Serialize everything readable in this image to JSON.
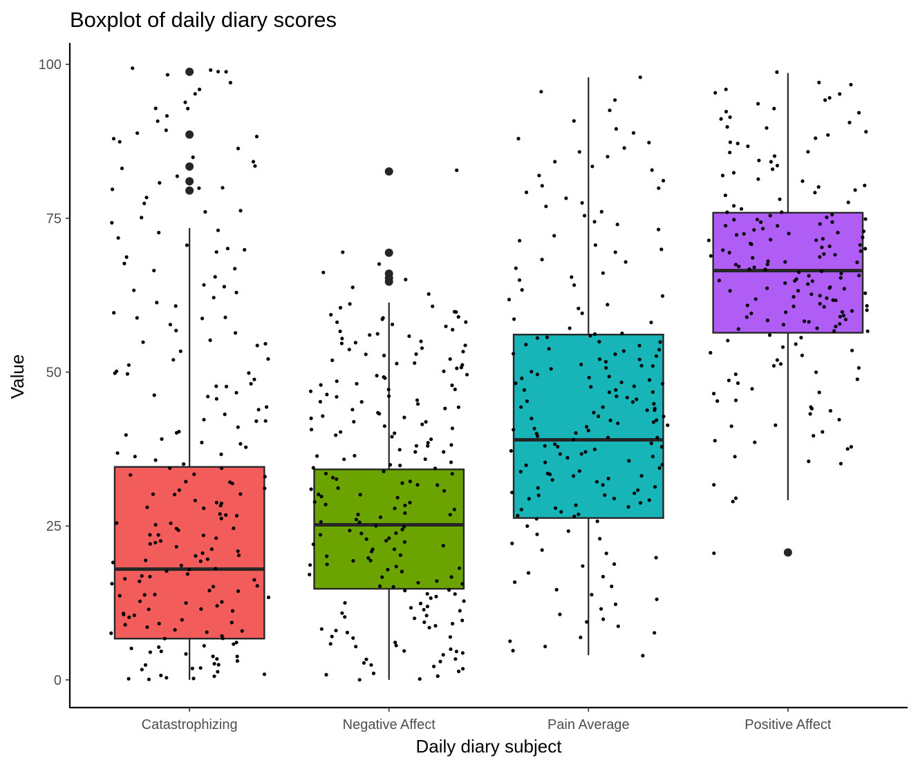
{
  "chart_data": {
    "type": "boxplot",
    "title": "Boxplot of daily diary scores",
    "xlabel": "Daily diary subject",
    "ylabel": "Value",
    "ylim": [
      -4.5,
      103.5
    ],
    "yticks": [
      0,
      25,
      50,
      75,
      100
    ],
    "ytick_labels": [
      "0",
      "25",
      "50",
      "75",
      "100"
    ],
    "grid": false,
    "legend": "none",
    "categories": [
      "Catastrophizing",
      "Negative Affect",
      "Pain Average",
      "Positive Affect"
    ],
    "colors": [
      "#F25D5B",
      "#6BA300",
      "#17B4B8",
      "#B05DF5"
    ],
    "point_color": "#000000",
    "boxes": [
      {
        "category": "Catastrophizing",
        "min": 0,
        "q1": 6.7,
        "median": 18.0,
        "q3": 34.6,
        "max": 73.4,
        "outliers": [
          79.5,
          81.0,
          83.4,
          88.6,
          98.8
        ]
      },
      {
        "category": "Negative Affect",
        "min": 0,
        "q1": 14.8,
        "median": 25.2,
        "q3": 34.2,
        "max": 61.3,
        "outliers": [
          64.7,
          65.3,
          66.0,
          69.4,
          82.6
        ]
      },
      {
        "category": "Pain Average",
        "min": 4.0,
        "q1": 26.3,
        "median": 39.0,
        "q3": 56.1,
        "max": 97.9,
        "outliers": []
      },
      {
        "category": "Positive Affect",
        "min": 29.2,
        "q1": 56.4,
        "median": 66.5,
        "q3": 75.9,
        "max": 98.6,
        "outliers": [
          20.7
        ]
      }
    ],
    "jitter_points": [
      [
        0.5,
        99.3,
        98.9,
        89.0,
        80.1,
        70.0,
        62.8,
        58.6,
        55.0,
        50.0,
        49.7,
        47.6,
        46.2,
        42.2,
        40.1,
        38.2,
        36.2,
        34.4,
        33.0,
        32.0,
        31.0,
        30.1,
        29.3,
        28.5,
        27.7,
        26.9,
        26.1,
        25.4,
        24.8,
        24.1,
        23.4,
        22.8,
        22.2,
        21.5,
        20.9,
        20.3,
        19.7,
        19.1,
        18.6,
        18.0,
        17.4,
        16.9,
        16.3,
        15.7,
        15.1,
        14.5,
        14.0,
        13.4,
        12.8,
        12.2,
        11.6,
        11.0,
        10.5,
        9.9,
        9.3,
        8.7,
        8.1,
        7.5,
        6.9,
        6.3,
        5.7,
        5.1,
        4.5,
        3.9,
        3.4,
        2.8,
        2.3,
        1.8,
        1.3,
        0.8,
        0.3,
        0.0,
        0.2,
        1.0,
        2.0,
        3.0,
        4.2,
        5.3,
        6.5,
        7.7,
        8.8,
        10.0,
        11.3,
        12.6,
        13.8,
        15.2,
        16.6,
        17.9,
        19.3,
        20.8,
        22.2,
        23.7,
        25.2,
        26.8,
        28.4,
        30.0,
        31.7,
        33.3,
        35.0,
        36.7,
        38.5,
        40.3,
        42.2,
        44.1,
        46.0,
        48.0,
        50.1,
        52.2,
        54.4,
        56.7,
        59.0,
        61.5,
        64.1,
        66.8,
        69.7,
        72.8,
        76.1,
        79.7,
        83.6,
        88.0,
        93.0,
        99.0,
        0.4,
        1.5,
        2.6,
        3.7,
        4.8,
        5.9,
        7.0,
        8.1,
        9.2,
        10.3,
        11.4,
        12.5,
        13.6,
        14.7,
        15.8,
        16.9,
        18.0,
        19.1,
        20.2,
        21.3,
        22.4,
        23.5,
        24.6,
        25.7,
        26.8,
        27.9,
        29.0,
        30.1,
        31.2,
        32.3,
        33.4,
        34.5,
        35.6,
        36.7,
        37.8,
        38.9,
        40.0,
        41.1,
        42.2,
        43.3,
        44.4,
        45.5,
        46.6,
        47.7,
        48.8,
        49.9,
        51.0,
        52.1,
        53.2,
        54.3,
        55.4,
        56.5,
        57.6,
        58.7,
        59.8,
        60.9,
        62.0,
        63.1,
        64.2,
        65.3,
        66.4,
        67.5,
        68.6,
        69.7,
        70.8,
        71.9,
        73.0,
        74.1,
        75.2,
        76.3,
        77.4,
        78.5,
        79.6,
        80.7,
        81.8,
        82.9,
        84.0,
        85.1,
        86.2,
        87.3,
        88.4,
        89.5,
        90.6,
        91.7,
        92.8,
        93.9,
        95.0,
        96.1,
        97.2,
        98.3,
        99.4
      ],
      [
        0.0,
        0.6,
        1.2,
        1.8,
        2.4,
        3.0,
        3.6,
        4.2,
        4.8,
        5.4,
        6.0,
        6.6,
        7.2,
        7.8,
        8.4,
        9.0,
        9.6,
        10.2,
        10.8,
        11.4,
        12.0,
        12.6,
        13.2,
        13.8,
        14.4,
        15.0,
        15.6,
        16.2,
        16.8,
        17.4,
        18.0,
        18.6,
        19.2,
        19.8,
        20.4,
        21.0,
        21.6,
        22.2,
        22.8,
        23.4,
        24.0,
        24.6,
        25.2,
        25.8,
        26.4,
        27.0,
        27.6,
        28.2,
        28.8,
        29.4,
        30.0,
        30.6,
        31.2,
        31.8,
        32.4,
        33.0,
        33.6,
        34.2,
        34.8,
        35.4,
        36.0,
        36.6,
        37.2,
        37.8,
        38.4,
        39.0,
        39.6,
        40.2,
        40.8,
        41.4,
        42.0,
        42.6,
        43.2,
        43.8,
        44.4,
        45.0,
        45.6,
        46.2,
        46.8,
        47.4,
        48.0,
        48.6,
        49.2,
        49.8,
        50.4,
        51.0,
        51.6,
        52.2,
        52.8,
        53.4,
        54.0,
        54.6,
        55.2,
        55.8,
        56.4,
        57.0,
        57.6,
        58.2,
        58.8,
        59.4,
        60.0,
        61.2,
        62.5,
        63.8,
        65.0,
        66.2,
        67.5,
        69.5,
        82.6,
        0.3,
        0.9,
        1.5,
        2.1,
        2.7,
        3.3,
        3.9,
        4.5,
        5.1,
        5.7,
        6.3,
        6.9,
        7.5,
        8.1,
        8.7,
        9.3,
        9.9,
        10.5,
        11.1,
        11.7,
        12.3,
        12.9,
        13.5,
        14.1,
        14.7,
        15.3,
        15.9,
        16.5,
        17.1,
        17.7,
        18.3,
        18.9,
        19.5,
        20.1,
        20.7,
        21.3,
        21.9,
        22.5,
        23.1,
        23.7,
        24.3,
        24.9,
        25.5,
        26.1,
        26.7,
        27.3,
        27.9,
        28.5,
        29.1,
        29.7,
        30.3,
        30.9,
        31.5,
        32.1,
        32.7,
        33.3,
        33.9,
        34.5,
        35.1,
        35.7,
        36.3,
        36.9,
        37.5,
        38.1,
        38.7,
        39.3,
        39.9,
        40.5,
        41.1,
        41.7,
        42.3,
        42.9,
        43.5,
        44.1,
        44.7,
        45.3,
        45.9,
        46.5,
        47.1,
        47.7,
        48.3,
        48.9,
        49.5,
        50.1,
        50.7,
        51.3,
        51.9,
        52.5,
        53.1,
        53.7,
        54.3,
        54.9,
        55.5,
        56.1,
        56.7,
        57.3,
        57.9,
        58.5,
        59.1,
        59.7,
        60.3,
        60.9
      ],
      [
        4.0,
        5.5,
        7.0,
        8.5,
        10.0,
        11.5,
        13.0,
        14.5,
        16.0,
        17.5,
        19.0,
        20.5,
        22.0,
        23.5,
        25.0,
        26.5,
        28.0,
        29.5,
        31.0,
        32.5,
        34.0,
        35.5,
        37.0,
        38.5,
        40.0,
        41.5,
        43.0,
        44.5,
        46.0,
        47.5,
        49.0,
        50.5,
        52.0,
        53.5,
        55.0,
        56.5,
        58.0,
        59.5,
        61.0,
        62.5,
        64.0,
        65.5,
        67.0,
        68.5,
        70.0,
        71.5,
        73.0,
        74.5,
        76.0,
        77.5,
        79.0,
        80.5,
        82.0,
        83.5,
        85.0,
        86.5,
        88.0,
        89.5,
        91.0,
        92.5,
        94.0,
        95.5,
        97.9,
        4.8,
        6.3,
        7.8,
        9.3,
        10.8,
        12.3,
        13.8,
        15.3,
        16.8,
        18.3,
        19.8,
        21.3,
        22.8,
        24.3,
        25.8,
        27.3,
        28.8,
        30.3,
        31.8,
        33.3,
        34.8,
        36.3,
        37.8,
        39.3,
        40.8,
        42.3,
        43.8,
        45.3,
        46.8,
        48.3,
        49.8,
        51.3,
        52.8,
        54.3,
        55.8,
        57.3,
        58.8,
        60.3,
        61.8,
        63.3,
        64.8,
        66.3,
        67.8,
        69.3,
        70.8,
        72.3,
        73.8,
        75.3,
        76.8,
        78.3,
        79.8,
        81.3,
        82.8,
        84.3,
        85.8,
        87.3,
        88.8,
        26.0,
        27.0,
        28.0,
        29.0,
        30.0,
        31.0,
        32.0,
        33.0,
        34.0,
        35.0,
        36.0,
        37.0,
        38.0,
        39.0,
        40.0,
        41.0,
        42.0,
        43.0,
        44.0,
        45.0,
        46.0,
        47.0,
        48.0,
        49.0,
        50.0,
        51.0,
        52.0,
        53.0,
        54.0,
        55.0,
        56.0,
        26.5,
        27.5,
        28.5,
        29.5,
        30.5,
        31.5,
        32.5,
        33.5,
        34.5,
        35.5,
        36.5,
        37.5,
        38.5,
        39.5,
        40.5,
        41.5,
        42.5,
        43.5,
        44.5,
        45.5,
        46.5,
        47.5,
        48.5,
        49.5,
        50.5,
        51.5,
        52.5,
        53.5,
        54.5,
        55.5,
        56.0,
        38.0,
        39.5,
        41.0,
        36.5,
        44.0,
        47.0,
        33.0,
        30.0,
        42.0,
        51.0,
        45.0,
        48.0
      ],
      [
        20.7,
        29.0,
        29.3,
        31.8,
        35.0,
        38.0,
        39.0,
        41.0,
        43.0,
        44.0,
        45.5,
        46.5,
        48.0,
        49.0,
        50.0,
        51.0,
        52.0,
        53.0,
        54.0,
        55.0,
        56.0,
        57.0,
        58.0,
        59.0,
        60.0,
        61.0,
        62.0,
        63.0,
        64.0,
        65.0,
        66.0,
        67.0,
        68.0,
        69.0,
        70.0,
        71.0,
        72.0,
        73.0,
        74.0,
        75.0,
        76.0,
        77.0,
        78.0,
        79.0,
        80.0,
        81.0,
        82.0,
        83.0,
        84.0,
        85.0,
        86.0,
        87.0,
        88.0,
        89.0,
        90.0,
        91.0,
        92.0,
        93.0,
        94.0,
        95.0,
        96.0,
        97.0,
        98.6,
        56.5,
        57.5,
        58.5,
        59.5,
        60.5,
        61.5,
        62.5,
        63.5,
        64.5,
        65.5,
        66.5,
        67.5,
        68.5,
        69.5,
        70.5,
        71.5,
        72.5,
        73.5,
        74.5,
        75.5,
        56.8,
        57.8,
        58.8,
        59.8,
        60.8,
        61.8,
        62.8,
        63.8,
        64.8,
        65.8,
        66.8,
        67.8,
        68.8,
        69.8,
        70.8,
        71.8,
        72.8,
        73.8,
        74.8,
        75.8,
        57.2,
        58.2,
        59.2,
        60.2,
        61.2,
        62.2,
        63.2,
        64.2,
        65.2,
        66.2,
        67.2,
        68.2,
        69.2,
        70.2,
        71.2,
        72.2,
        73.2,
        74.2,
        75.2,
        57.6,
        58.6,
        59.6,
        60.6,
        61.6,
        62.6,
        63.6,
        64.6,
        65.6,
        66.6,
        67.6,
        68.6,
        69.6,
        70.6,
        71.6,
        72.6,
        73.6,
        74.6,
        75.6,
        76.5,
        77.5,
        78.5,
        79.5,
        80.5,
        81.5,
        82.5,
        83.5,
        84.5,
        85.5,
        86.5,
        87.5,
        88.5,
        89.5,
        90.5,
        91.5,
        92.5,
        93.5,
        94.5,
        95.5,
        96.5,
        55.5,
        54.5,
        53.5,
        52.5,
        51.5,
        50.5,
        49.5,
        48.5,
        47.5,
        46.5,
        45.5,
        44.5,
        43.5,
        42.5,
        41.5,
        40.5,
        39.5,
        38.5,
        37.5,
        36.5,
        35.5
      ]
    ]
  }
}
